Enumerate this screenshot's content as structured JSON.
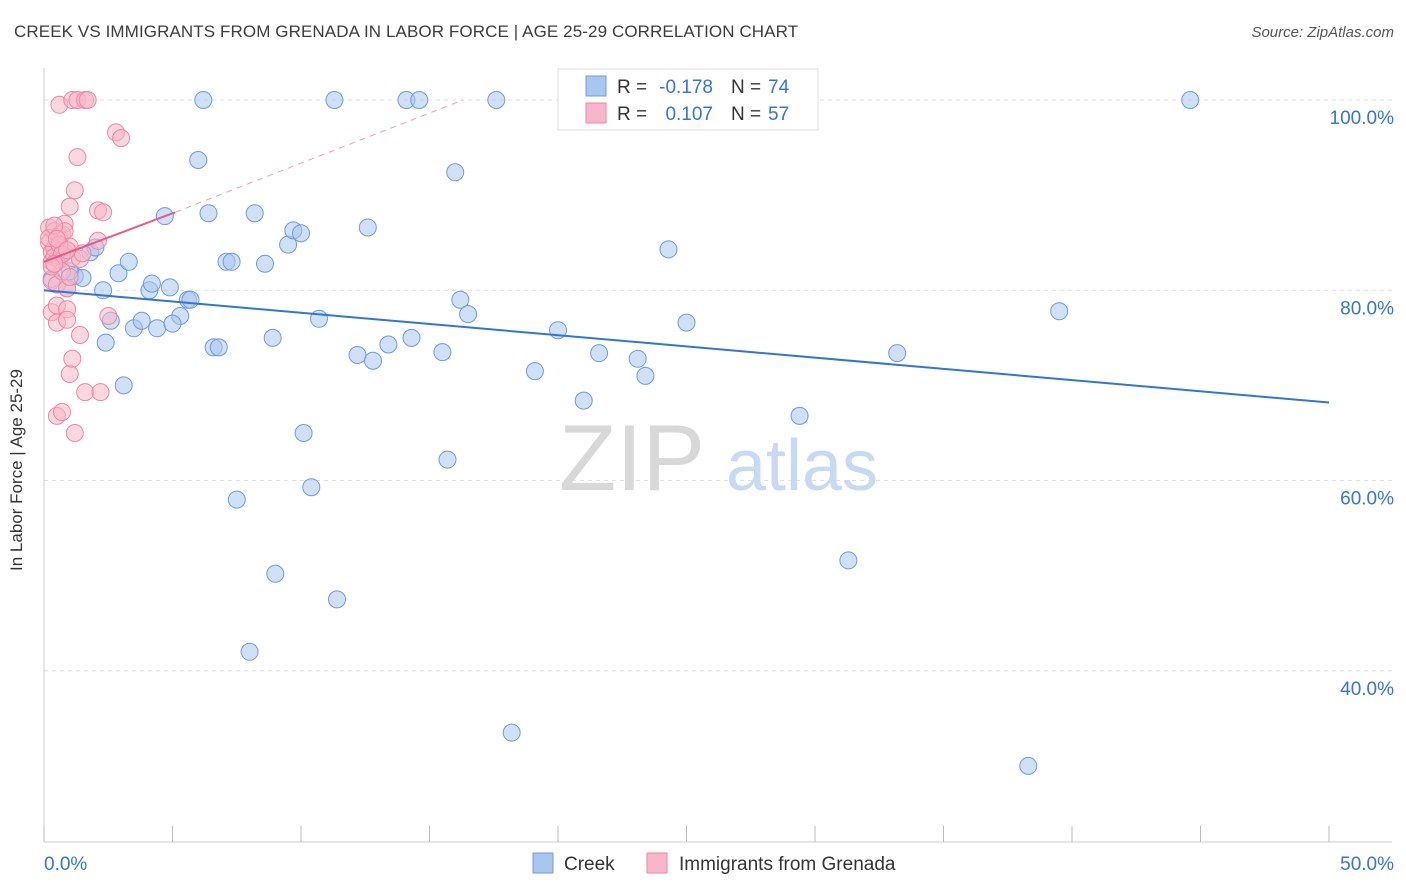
{
  "title": "CREEK VS IMMIGRANTS FROM GRENADA IN LABOR FORCE | AGE 25-29 CORRELATION CHART",
  "source": "Source: ZipAtlas.com",
  "watermark": {
    "zip": "ZIP",
    "atlas": "atlas"
  },
  "chart_data": {
    "type": "scatter",
    "ylabel": "In Labor Force | Age 25-29",
    "x_tick_labels": [
      "0.0%",
      "50.0%"
    ],
    "y_tick_labels": [
      "100.0%",
      "80.0%",
      "60.0%",
      "40.0%"
    ],
    "y_ticks": [
      100,
      80,
      60,
      40
    ],
    "xlim": [
      0,
      50
    ],
    "ylim": [
      22,
      104
    ],
    "grid": true,
    "legend_top": [
      {
        "r_label": "R =",
        "r_value": "-0.178",
        "n_label": "N =",
        "n_value": "74",
        "color": "#a9c6ef",
        "stroke": "#6d9be0"
      },
      {
        "r_label": "R =",
        "r_value": "0.107",
        "n_label": "N =",
        "n_value": "57",
        "color": "#f7b6c9",
        "stroke": "#ee86a5"
      }
    ],
    "series": [
      {
        "name": "Creek",
        "fill": "#a9c6ef",
        "stroke": "#6d9be0",
        "line_color": "#3475d0",
        "trend": {
          "x": [
            0,
            50
          ],
          "y": [
            80.0,
            68.2
          ]
        },
        "points": [
          [
            0.3,
            81.2
          ],
          [
            0.9,
            80.2
          ],
          [
            1.2,
            81.5
          ],
          [
            1.5,
            81.3
          ],
          [
            1.8,
            84.0
          ],
          [
            2.3,
            80.0
          ],
          [
            2.4,
            74.5
          ],
          [
            2.6,
            76.8
          ],
          [
            2.9,
            81.8
          ],
          [
            3.1,
            70.0
          ],
          [
            3.3,
            83.0
          ],
          [
            3.5,
            76.0
          ],
          [
            3.8,
            76.8
          ],
          [
            4.1,
            80.0
          ],
          [
            4.2,
            80.7
          ],
          [
            4.4,
            76.0
          ],
          [
            4.7,
            87.8
          ],
          [
            4.9,
            80.3
          ],
          [
            5.3,
            77.3
          ],
          [
            5.6,
            79.0
          ],
          [
            5.7,
            79.0
          ],
          [
            6.0,
            93.7
          ],
          [
            6.2,
            100.0
          ],
          [
            6.4,
            88.1
          ],
          [
            6.6,
            74.0
          ],
          [
            6.8,
            74.0
          ],
          [
            7.1,
            83.0
          ],
          [
            7.3,
            83.0
          ],
          [
            7.5,
            58.0
          ],
          [
            8.0,
            42.0
          ],
          [
            8.2,
            88.1
          ],
          [
            8.6,
            82.8
          ],
          [
            8.9,
            75.0
          ],
          [
            9.0,
            50.2
          ],
          [
            9.5,
            84.8
          ],
          [
            9.7,
            86.3
          ],
          [
            10.1,
            65.0
          ],
          [
            10.4,
            59.3
          ],
          [
            10.7,
            77.0
          ],
          [
            11.3,
            100.0
          ],
          [
            11.4,
            47.5
          ],
          [
            12.2,
            73.2
          ],
          [
            12.6,
            86.6
          ],
          [
            12.8,
            72.6
          ],
          [
            13.4,
            74.3
          ],
          [
            14.1,
            100.0
          ],
          [
            14.3,
            75.0
          ],
          [
            14.6,
            100.0
          ],
          [
            15.5,
            73.5
          ],
          [
            15.7,
            62.2
          ],
          [
            16.0,
            92.4
          ],
          [
            16.2,
            79.0
          ],
          [
            17.6,
            100.0
          ],
          [
            18.2,
            33.5
          ],
          [
            19.1,
            71.5
          ],
          [
            20.0,
            75.8
          ],
          [
            21.0,
            68.4
          ],
          [
            21.6,
            73.4
          ],
          [
            23.1,
            72.8
          ],
          [
            23.4,
            71.0
          ],
          [
            24.3,
            84.3
          ],
          [
            25.0,
            76.6
          ],
          [
            29.4,
            66.8
          ],
          [
            31.3,
            51.6
          ],
          [
            33.2,
            73.4
          ],
          [
            38.3,
            30.0
          ],
          [
            39.5,
            77.8
          ],
          [
            44.6,
            100.0
          ],
          [
            0.5,
            83.5
          ],
          [
            1.0,
            82.0
          ],
          [
            2.0,
            84.5
          ],
          [
            5.0,
            76.5
          ],
          [
            10.0,
            86.0
          ],
          [
            16.5,
            77.5
          ]
        ]
      },
      {
        "name": "Immigrants from Grenada",
        "fill": "#f7b6c9",
        "stroke": "#ee86a5",
        "line_color": "#e8598a",
        "trend": {
          "x": [
            0,
            5.1
          ],
          "y": [
            83.0,
            88.2
          ]
        },
        "trend_ext": {
          "x": [
            5.1,
            16.3
          ],
          "y": [
            88.2,
            100.0
          ]
        },
        "points": [
          [
            0.2,
            86.6
          ],
          [
            0.2,
            85.0
          ],
          [
            0.3,
            84.0
          ],
          [
            0.3,
            83.0
          ],
          [
            0.3,
            81.0
          ],
          [
            0.3,
            77.7
          ],
          [
            0.4,
            86.2
          ],
          [
            0.4,
            84.4
          ],
          [
            0.4,
            83.5
          ],
          [
            0.5,
            80.6
          ],
          [
            0.5,
            78.4
          ],
          [
            0.5,
            76.6
          ],
          [
            0.5,
            66.8
          ],
          [
            0.6,
            99.5
          ],
          [
            0.6,
            85.8
          ],
          [
            0.6,
            83.2
          ],
          [
            0.7,
            85.9
          ],
          [
            0.7,
            82.0
          ],
          [
            0.7,
            67.2
          ],
          [
            0.8,
            87.0
          ],
          [
            0.8,
            86.2
          ],
          [
            0.8,
            84.0
          ],
          [
            0.9,
            80.2
          ],
          [
            0.9,
            78.0
          ],
          [
            0.9,
            76.9
          ],
          [
            1.0,
            88.8
          ],
          [
            1.0,
            84.6
          ],
          [
            1.0,
            71.2
          ],
          [
            1.1,
            100.0
          ],
          [
            1.1,
            83.4
          ],
          [
            1.1,
            72.8
          ],
          [
            1.2,
            90.5
          ],
          [
            1.2,
            65.0
          ],
          [
            1.3,
            94.0
          ],
          [
            1.3,
            100.0
          ],
          [
            1.4,
            75.3
          ],
          [
            1.4,
            83.3
          ],
          [
            1.6,
            100.0
          ],
          [
            1.6,
            69.3
          ],
          [
            1.7,
            100.0
          ],
          [
            2.1,
            85.2
          ],
          [
            2.1,
            88.4
          ],
          [
            2.2,
            69.3
          ],
          [
            2.3,
            88.2
          ],
          [
            2.5,
            77.3
          ],
          [
            2.8,
            96.6
          ],
          [
            3.0,
            96.0
          ],
          [
            0.2,
            85.5
          ],
          [
            0.3,
            82.5
          ],
          [
            0.6,
            84.8
          ],
          [
            0.4,
            86.8
          ],
          [
            0.7,
            83.8
          ],
          [
            1.0,
            81.4
          ],
          [
            1.5,
            83.9
          ],
          [
            0.5,
            85.4
          ],
          [
            0.9,
            84.2
          ],
          [
            0.4,
            82.8
          ]
        ]
      }
    ],
    "legend_bottom": [
      "Creek",
      "Immigrants from Grenada"
    ]
  }
}
